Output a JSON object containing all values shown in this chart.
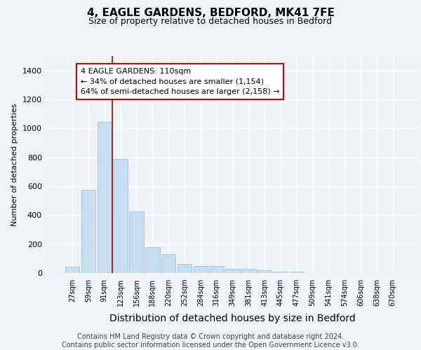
{
  "title_line1": "4, EAGLE GARDENS, BEDFORD, MK41 7FE",
  "title_line2": "Size of property relative to detached houses in Bedford",
  "xlabel": "Distribution of detached houses by size in Bedford",
  "ylabel": "Number of detached properties",
  "bar_color": "#c8ddf0",
  "bar_edge_color": "#a0bcd8",
  "categories": [
    "27sqm",
    "59sqm",
    "91sqm",
    "123sqm",
    "156sqm",
    "188sqm",
    "220sqm",
    "252sqm",
    "284sqm",
    "316sqm",
    "349sqm",
    "381sqm",
    "413sqm",
    "445sqm",
    "477sqm",
    "509sqm",
    "541sqm",
    "574sqm",
    "606sqm",
    "638sqm",
    "670sqm"
  ],
  "values": [
    45,
    575,
    1045,
    790,
    425,
    180,
    130,
    65,
    48,
    46,
    28,
    27,
    20,
    12,
    10,
    0,
    0,
    0,
    0,
    0,
    0
  ],
  "ylim": [
    0,
    1500
  ],
  "yticks": [
    0,
    200,
    400,
    600,
    800,
    1000,
    1200,
    1400
  ],
  "vline_x_idx": 2.5,
  "vline_color": "#aa0000",
  "annotation_text": "4 EAGLE GARDENS: 110sqm\n← 34% of detached houses are smaller (1,154)\n64% of semi-detached houses are larger (2,158) →",
  "annotation_box_color": "#ffffff",
  "annotation_box_edge_color": "#cc0000",
  "footer_line1": "Contains HM Land Registry data © Crown copyright and database right 2024.",
  "footer_line2": "Contains public sector information licensed under the Open Government Licence v3.0.",
  "bg_color": "#f0f4f8",
  "plot_bg_color": "#eef3f8",
  "grid_color": "#ffffff",
  "title_fontsize": 11,
  "subtitle_fontsize": 9,
  "xlabel_fontsize": 10,
  "ylabel_fontsize": 8,
  "tick_fontsize": 7,
  "ytick_fontsize": 8,
  "annotation_fontsize": 8,
  "footer_fontsize": 7
}
